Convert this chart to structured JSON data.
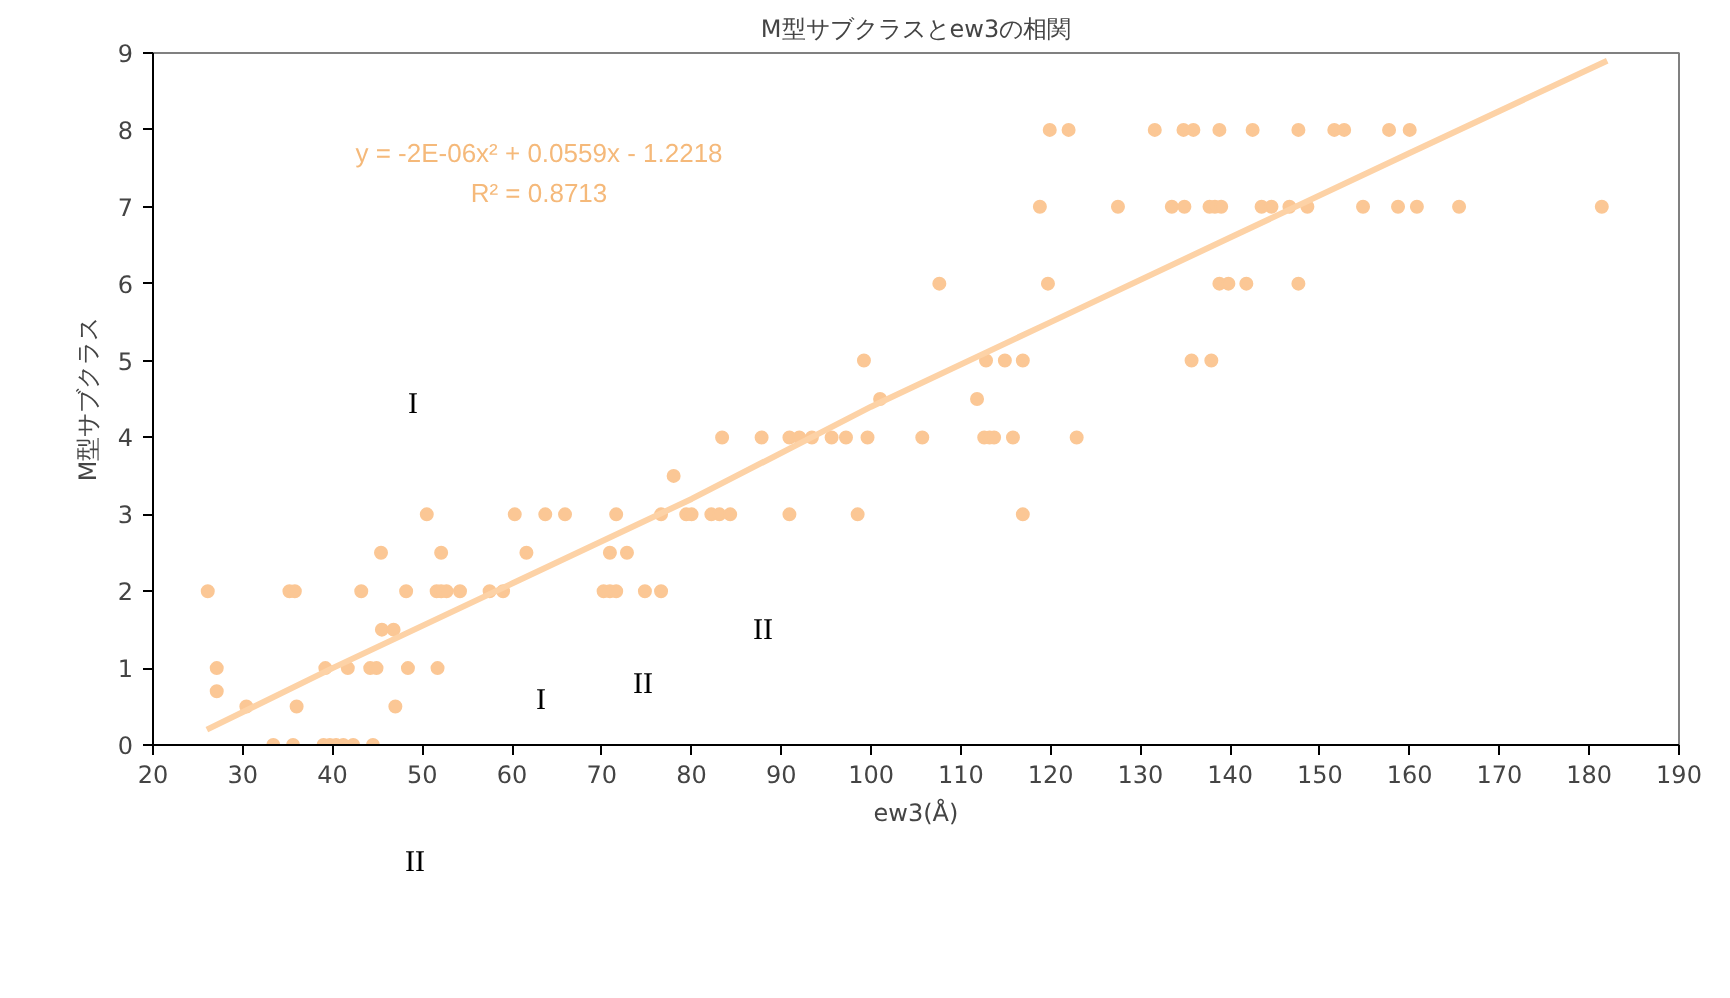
{
  "chart_data": {
    "type": "scatter",
    "title": "M型サブクラスとew3の相関",
    "xlabel": "ew3(Å)",
    "ylabel": "M型サブクラス",
    "xlim": [
      20,
      190
    ],
    "xticks": [
      20,
      30,
      40,
      50,
      60,
      70,
      80,
      90,
      100,
      110,
      120,
      130,
      140,
      150,
      160,
      170,
      180,
      190
    ],
    "ylim": [
      0,
      9
    ],
    "yticks": [
      0,
      1,
      2,
      3,
      4,
      5,
      6,
      7,
      8,
      9
    ],
    "grid": false,
    "series": [
      {
        "marker": "circle",
        "color": "#fbc795",
        "x": [
          33.4,
          35.6,
          39.0,
          39.7,
          40.4,
          41.2,
          42.3,
          44.5,
          30.4,
          36.0,
          47.0,
          27.1,
          27.1,
          39.2,
          41.7,
          44.2,
          44.9,
          48.4,
          51.7,
          45.5,
          46.8,
          26.1,
          35.2,
          35.8,
          43.2,
          48.2,
          51.6,
          52.1,
          52.7,
          54.2,
          57.5,
          59.0,
          70.2,
          70.9,
          71.6,
          74.8,
          76.6,
          45.4,
          52.1,
          61.6,
          70.9,
          72.8,
          50.5,
          60.3,
          63.7,
          65.9,
          71.6,
          76.6,
          79.4,
          80.0,
          82.2,
          83.1,
          84.3,
          90.9,
          98.5,
          116.9,
          78.0,
          83.4,
          87.8,
          90.9,
          92.0,
          93.4,
          95.6,
          97.2,
          99.6,
          105.7,
          112.6,
          113.2,
          113.7,
          115.8,
          122.9,
          101.0,
          111.8,
          99.2,
          112.8,
          114.9,
          116.9,
          135.7,
          137.9,
          107.6,
          119.7,
          138.8,
          139.8,
          141.8,
          147.6,
          118.8,
          127.5,
          133.5,
          134.9,
          137.7,
          138.3,
          139.0,
          143.5,
          144.6,
          146.6,
          148.6,
          154.8,
          158.7,
          160.8,
          165.5,
          181.4,
          119.9,
          122.0,
          131.6,
          134.8,
          135.9,
          138.8,
          142.5,
          147.6,
          151.6,
          152.7,
          157.7,
          160.0
        ],
        "values": [
          0,
          0,
          0,
          0,
          0,
          0,
          0,
          0,
          0.5,
          0.5,
          0.5,
          0.7,
          1,
          1,
          1,
          1,
          1,
          1,
          1,
          1.5,
          1.5,
          2,
          2,
          2,
          2,
          2,
          2,
          2,
          2,
          2,
          2,
          2,
          2,
          2,
          2,
          2,
          2,
          2.5,
          2.5,
          2.5,
          2.5,
          2.5,
          3,
          3,
          3,
          3,
          3,
          3,
          3,
          3,
          3,
          3,
          3,
          3,
          3,
          3,
          3.5,
          4,
          4,
          4,
          4,
          4,
          4,
          4,
          4,
          4,
          4,
          4,
          4,
          4,
          4,
          4.5,
          4.5,
          5,
          5,
          5,
          5,
          5,
          5,
          6,
          6,
          6,
          6,
          6,
          6,
          7,
          7,
          7,
          7,
          7,
          7,
          7,
          7,
          7,
          7,
          7,
          7,
          7,
          7,
          7,
          7,
          8,
          8,
          8,
          8,
          8,
          8,
          8,
          8,
          8,
          8,
          8,
          8
        ]
      },
      {
        "type": "line",
        "marker": "none",
        "color": "#fdd2a6",
        "x": [
          26,
          40,
          60,
          80,
          100,
          120,
          140,
          160,
          182
        ],
        "values": [
          0.2,
          1.0,
          2.1,
          3.2,
          4.4,
          5.5,
          6.6,
          7.7,
          8.9
        ]
      }
    ],
    "annotations": [
      "y = -2E-06x² + 0.0559x - 1.2218",
      "R² = 0.8713",
      "I",
      "I",
      "II",
      "II",
      "II"
    ]
  }
}
